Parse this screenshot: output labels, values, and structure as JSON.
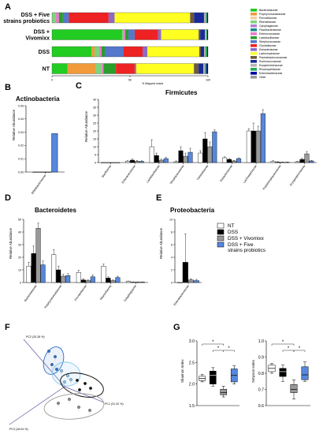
{
  "colors": {
    "families": [
      "#22cc22",
      "#f09a3a",
      "#f5ce9a",
      "#8c6cc4",
      "#7fd37f",
      "#b07fd6",
      "#1e8c8c",
      "#e67ac8",
      "#2a9d2a",
      "#5577cc",
      "#ee2222",
      "#22aa55",
      "#ffff22",
      "#6b5a3c",
      "#b4b4b4",
      "#1a2a9a",
      "#880000",
      "#0000aa",
      "#444444",
      "#999999"
    ],
    "groups": [
      "#ffffff",
      "#000000",
      "#999999",
      "#5588dd"
    ]
  },
  "panel_a": {
    "label": "A",
    "xlabel": "% Mapped reads",
    "xticks": [
      "0",
      "50",
      "100"
    ],
    "groups": [
      "DSS + Five strains probiotics",
      "DSS + Vivomixx",
      "DSS",
      "NT"
    ],
    "group_lines": [
      [
        "DSS + Five",
        "strains probiotics"
      ],
      [
        "DSS +",
        "Vivomixx"
      ],
      [
        "DSS"
      ],
      [
        "NT"
      ]
    ],
    "legend": [
      "Bacteroidaceae",
      "Porphyromonadaceae",
      "Prevotellaceae",
      "Rikenellaceae",
      "Cytophagaceae",
      "Flavobacteriaceae",
      "Enterococcaceae",
      "Lactobacillaceae",
      "Streptococcaceae",
      "Clostridiaceae",
      "Eubacteriaceae",
      "Lachnospiraceae",
      "Peptostreptococcaceae",
      "Ruminococcaceae",
      "Erysipelotrichaceae",
      "Rhodospirillaceae",
      "Enterobacteriaceae",
      "Other"
    ],
    "bars": [
      [
        0,
        0,
        0,
        2,
        0,
        0,
        1.5,
        2,
        3,
        20,
        3,
        38,
        2,
        5,
        1,
        0.5,
        0.5,
        0
      ],
      [
        45,
        0,
        0,
        1,
        0,
        0,
        1,
        2,
        4,
        15,
        2,
        24,
        1,
        3,
        1,
        0.5,
        0.5,
        0
      ],
      [
        25,
        2,
        0,
        3,
        0,
        0,
        1.5,
        2,
        12,
        12,
        3,
        33,
        1,
        2,
        1,
        1,
        0.5,
        0
      ],
      [
        10,
        18,
        0,
        4,
        0,
        0,
        1,
        8,
        0,
        12,
        1,
        37,
        3,
        3,
        1,
        1,
        1,
        0
      ]
    ],
    "bar_colors": [
      "#22cc22",
      "#f09a3a",
      "#f5ce9a",
      "#7fd37f",
      "#b07fd6",
      "#1e8c8c",
      "#e67ac8",
      "#2a9d2a",
      "#5577cc",
      "#ee2222",
      "#8c6cc4",
      "#ffff22",
      "#6b5a3c",
      "#1a2a9a",
      "#b4b4b4",
      "#22aa55",
      "#0000aa",
      "#999999"
    ]
  },
  "panel_b": {
    "label": "B",
    "title": "Actinobacteria",
    "ylabel": "Relative Abundance",
    "yticks": [
      "0.00",
      "0.01",
      "0.02",
      "0.03",
      "0.04",
      "0.05"
    ],
    "category": "Bifidobacteriaceae"
  },
  "panel_c": {
    "label": "C",
    "title": "Firmicutes",
    "ylabel": "Relative Abundance",
    "yticks": [
      "0",
      "5",
      "10",
      "15",
      "20",
      "25",
      "30",
      "35",
      "40"
    ],
    "categories": [
      "Bacillaceae",
      "Enterococcaceae",
      "Lactobacillaceae",
      "Streptococcaceae",
      "Clostridiaceae",
      "Eubacteriaceae",
      "Lachnospiraceae",
      "Peptostreptococcaceae",
      "Erysipelotrichaceae"
    ]
  },
  "panel_d": {
    "label": "D",
    "title": "Bacteroidetes",
    "ylabel": "Relative Abundance",
    "yticks": [
      "0",
      "10",
      "20",
      "30",
      "40",
      "50"
    ],
    "categories": [
      "Bacteroidaceae",
      "Porphyromonadaceae",
      "Prevotellaceae",
      "Rikenellaceae",
      "Cytophagaceae"
    ]
  },
  "panel_e": {
    "label": "E",
    "title": "Proteobacteria",
    "ylabel": "Relative Abundance",
    "yticks": [
      "0",
      "2",
      "4",
      "6",
      "8",
      "10"
    ],
    "category": "Enterobacteriaceae"
  },
  "legend_groups": [
    "NT",
    "DSS",
    "DSS + Vivomixx",
    "DSS + Five strains probiotics"
  ],
  "legend_group_lines": [
    [
      "NT"
    ],
    [
      "DSS"
    ],
    [
      "DSS + Vivomixx"
    ],
    [
      "DSS + Five",
      "strains probiotics"
    ]
  ],
  "panel_f": {
    "label": "F",
    "pc1": "PC1 (31.32 %)",
    "pc2": "PC2 (20.28 %)",
    "pc3": "PC3 (18.04 %)"
  },
  "panel_g": {
    "label": "G",
    "shannon_label": "Shannon Index",
    "shannon_yticks": [
      "1.5",
      "2.0",
      "2.5",
      "3.0"
    ],
    "simpson_label": "Simpson Index",
    "simpson_yticks": [
      "0.6",
      "0.7",
      "0.8",
      "0.9",
      "1.0"
    ],
    "star": "*"
  },
  "chart_data": [
    {
      "type": "bar",
      "panel": "A",
      "stacked": true,
      "horizontal": true,
      "categories": [
        "DSS + Five strains probiotics",
        "DSS + Vivomixx",
        "DSS",
        "NT"
      ],
      "xlabel": "% Mapped reads",
      "xlim": [
        0,
        100
      ],
      "series": [
        {
          "name": "Bacteroidaceae",
          "values": [
            0,
            45,
            25,
            10
          ]
        },
        {
          "name": "Porphyromonadaceae",
          "values": [
            0,
            0,
            2,
            18
          ]
        },
        {
          "name": "Rikenellaceae",
          "values": [
            2,
            1,
            3,
            4
          ]
        },
        {
          "name": "Clostridiaceae",
          "values": [
            20,
            15,
            12,
            12
          ]
        },
        {
          "name": "Lachnospiraceae",
          "values": [
            38,
            24,
            33,
            37
          ]
        }
      ]
    },
    {
      "type": "bar",
      "panel": "B",
      "categories": [
        "Bifidobacteriaceae"
      ],
      "ylabel": "Relative Abundance",
      "ylim": [
        0,
        0.05
      ],
      "series": [
        {
          "name": "NT",
          "values": [
            0
          ]
        },
        {
          "name": "DSS",
          "values": [
            0
          ]
        },
        {
          "name": "DSS + Vivomixx",
          "values": [
            0
          ]
        },
        {
          "name": "DSS + Five strains probiotics",
          "values": [
            0.029
          ]
        }
      ]
    },
    {
      "type": "bar",
      "panel": "C",
      "categories": [
        "Bacillaceae",
        "Enterococcaceae",
        "Lactobacillaceae",
        "Streptococcaceae",
        "Clostridiaceae",
        "Eubacteriaceae",
        "Lachnospiraceae",
        "Peptostreptococcaceae",
        "Erysipelotrichaceae"
      ],
      "ylabel": "Relative Abundance",
      "ylim": [
        0,
        40
      ],
      "series": [
        {
          "name": "NT",
          "values": [
            0,
            0.8,
            10,
            0.5,
            6,
            3,
            20,
            0.8,
            0.5
          ]
        },
        {
          "name": "DSS",
          "values": [
            0,
            1.5,
            4.5,
            7.5,
            15,
            2,
            20,
            0.3,
            2
          ]
        },
        {
          "name": "DSS + Vivomixx",
          "values": [
            0,
            0.8,
            1.5,
            4,
            10,
            1,
            20,
            0.2,
            5.5
          ]
        },
        {
          "name": "DSS + Five strains probiotics",
          "values": [
            0,
            0.7,
            2.5,
            6.5,
            19.5,
            2.5,
            31,
            0.2,
            1
          ]
        }
      ],
      "errors": [
        [
          0,
          0.4,
          4.5,
          0.5,
          1.5,
          0.6,
          1.5,
          0.4,
          0.3
        ],
        [
          0,
          0.8,
          1.5,
          2.5,
          4,
          0.5,
          5,
          0.2,
          0.7
        ],
        [
          0,
          0.5,
          0.6,
          2,
          3,
          0.4,
          3,
          0.1,
          1.5
        ],
        [
          0,
          0.4,
          0.8,
          2.5,
          1.2,
          0.5,
          2.5,
          0.1,
          0.4
        ]
      ]
    },
    {
      "type": "bar",
      "panel": "D",
      "categories": [
        "Bacteroidaceae",
        "Porphyromonadaceae",
        "Prevotellaceae",
        "Rikenellaceae",
        "Cytophagaceae"
      ],
      "ylabel": "Relative Abundance",
      "ylim": [
        0,
        50
      ],
      "series": [
        {
          "name": "NT",
          "values": [
            13,
            22,
            8,
            13,
            1
          ]
        },
        {
          "name": "DSS",
          "values": [
            23,
            10,
            2,
            3.5,
            0.3
          ]
        },
        {
          "name": "DSS + Vivomixx",
          "values": [
            43,
            5,
            1.5,
            1.5,
            0.3
          ]
        },
        {
          "name": "DSS + Five strains probiotics",
          "values": [
            14,
            5.5,
            4.5,
            4,
            0.3
          ]
        }
      ],
      "errors": [
        [
          3,
          4,
          1.5,
          1.5,
          0.2
        ],
        [
          6,
          3,
          1,
          1,
          0.1
        ],
        [
          4,
          1.5,
          0.5,
          0.5,
          0.1
        ],
        [
          3,
          1.5,
          1.5,
          1,
          0.1
        ]
      ]
    },
    {
      "type": "bar",
      "panel": "E",
      "categories": [
        "Enterobacteriaceae"
      ],
      "ylabel": "Relative Abundance",
      "ylim": [
        0,
        10
      ],
      "series": [
        {
          "name": "NT",
          "values": [
            0
          ]
        },
        {
          "name": "DSS",
          "values": [
            3.2
          ]
        },
        {
          "name": "DSS + Vivomixx",
          "values": [
            0.4
          ]
        },
        {
          "name": "DSS + Five strains probiotics",
          "values": [
            0.3
          ]
        }
      ],
      "errors": [
        [
          0
        ],
        [
          4.5
        ],
        [
          0.2
        ],
        [
          0.2
        ]
      ]
    },
    {
      "type": "scatter",
      "panel": "F",
      "xlabel": "PC1 (31.32 %)",
      "ylabel": "PC2 (20.28 %)",
      "zlabel": "PC3 (18.04 %)"
    },
    {
      "type": "box",
      "panel": "G",
      "title": "Shannon Index",
      "ylim": [
        1.5,
        3.0
      ],
      "series": [
        {
          "name": "NT",
          "min": 2.05,
          "q1": 2.08,
          "median": 2.13,
          "q3": 2.18,
          "max": 2.22
        },
        {
          "name": "DSS",
          "min": 1.95,
          "q1": 2.0,
          "median": 2.2,
          "q3": 2.3,
          "max": 2.38
        },
        {
          "name": "DSS + Vivomixx",
          "min": 1.7,
          "q1": 1.75,
          "median": 1.8,
          "q3": 1.88,
          "max": 1.95
        },
        {
          "name": "DSS + Five strains probiotics",
          "min": 2.0,
          "q1": 2.05,
          "median": 2.2,
          "q3": 2.35,
          "max": 2.42
        }
      ]
    },
    {
      "type": "box",
      "panel": "G",
      "title": "Simpson Index",
      "ylim": [
        0.6,
        1.0
      ],
      "series": [
        {
          "name": "NT",
          "min": 0.8,
          "q1": 0.81,
          "median": 0.83,
          "q3": 0.85,
          "max": 0.86
        },
        {
          "name": "DSS",
          "min": 0.75,
          "q1": 0.78,
          "median": 0.81,
          "q3": 0.83,
          "max": 0.85
        },
        {
          "name": "DSS + Vivomixx",
          "min": 0.64,
          "q1": 0.68,
          "median": 0.7,
          "q3": 0.73,
          "max": 0.76
        },
        {
          "name": "DSS + Five strains probiotics",
          "min": 0.75,
          "q1": 0.76,
          "median": 0.79,
          "q3": 0.84,
          "max": 0.87
        }
      ]
    }
  ]
}
